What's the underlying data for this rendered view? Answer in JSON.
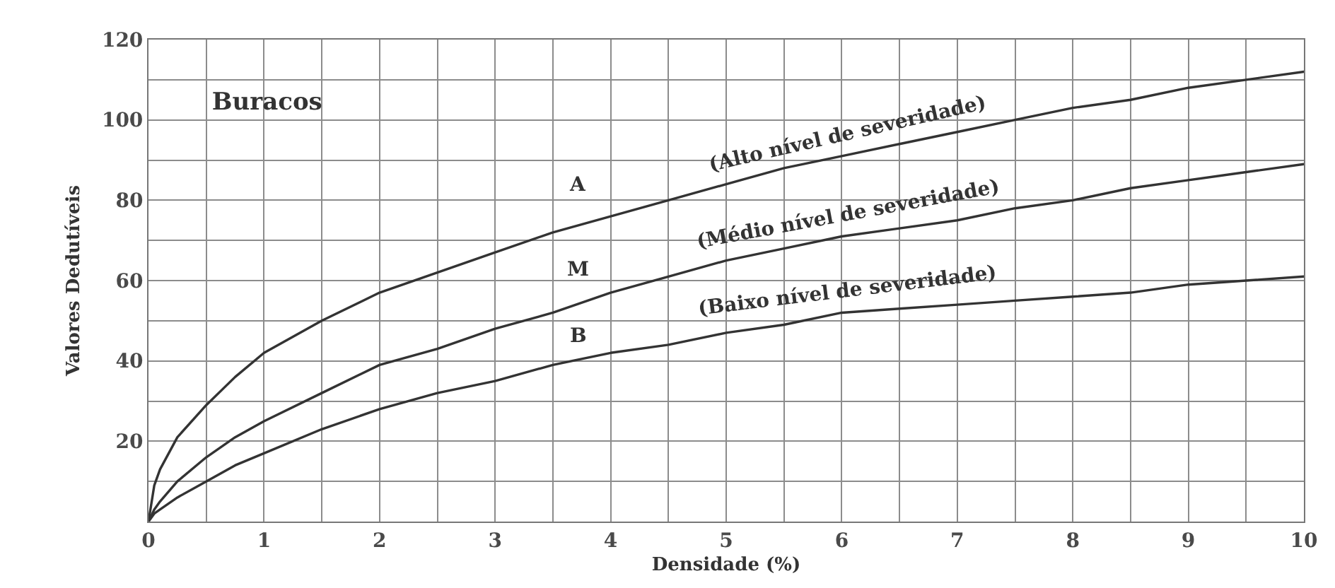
{
  "chart_data": {
    "type": "line",
    "title": "Buracos",
    "xlabel": "Densidade (%)",
    "ylabel": "Valores Dedutíveis",
    "x": [
      0,
      0.05,
      0.1,
      0.25,
      0.5,
      0.75,
      1,
      1.5,
      2,
      2.5,
      3,
      3.5,
      4,
      4.5,
      5,
      5.5,
      6,
      6.5,
      7,
      7.5,
      8,
      8.5,
      9,
      9.5,
      10
    ],
    "series": [
      {
        "name": "A",
        "color": "#333333",
        "values": [
          0,
          9,
          13,
          21,
          29,
          36,
          42,
          50,
          57,
          62,
          67,
          72,
          76,
          80,
          84,
          88,
          91,
          94,
          97,
          100,
          103,
          105,
          108,
          110,
          112
        ]
      },
      {
        "name": "M",
        "color": "#333333",
        "values": [
          0,
          3,
          5,
          10,
          16,
          21,
          25,
          32,
          39,
          43,
          48,
          52,
          57,
          61,
          65,
          68,
          71,
          73,
          75,
          78,
          80,
          83,
          85,
          87,
          89
        ]
      },
      {
        "name": "B",
        "color": "#333333",
        "values": [
          0,
          2,
          3,
          6,
          10,
          14,
          17,
          23,
          28,
          32,
          35,
          39,
          42,
          44,
          47,
          49,
          52,
          53,
          54,
          55,
          56,
          57,
          59,
          60,
          61
        ]
      }
    ],
    "xlim": [
      0,
      10
    ],
    "ylim": [
      0,
      120
    ],
    "xticks": [
      0,
      {
        "value": 0.5,
        "label": null
      },
      1,
      {
        "value": 1.5,
        "label": null
      },
      2,
      {
        "value": 2.5,
        "label": null
      },
      3,
      {
        "value": 3.5,
        "label": null
      },
      4,
      {
        "value": 4.5,
        "label": null
      },
      5,
      {
        "value": 5.5,
        "label": null
      },
      6,
      {
        "value": 6.5,
        "label": null
      },
      7,
      {
        "value": 7.5,
        "label": null
      },
      8,
      {
        "value": 8.5,
        "label": null
      },
      9,
      {
        "value": 9.5,
        "label": null
      },
      10
    ],
    "yticks": [
      {
        "value": 0,
        "label": null
      },
      {
        "value": 10,
        "label": null
      },
      20,
      {
        "value": 30,
        "label": null
      },
      40,
      {
        "value": 50,
        "label": null
      },
      60,
      {
        "value": 70,
        "label": null
      },
      80,
      {
        "value": 90,
        "label": null
      },
      100,
      {
        "value": 110,
        "label": null
      },
      120
    ],
    "grid": true,
    "legend": false,
    "marker": "none",
    "line_style": "solid",
    "annotations": [
      "(Alto nível de severidade)",
      "(Médio nível de severidade)",
      "(Baixo nível de severidade)"
    ]
  }
}
